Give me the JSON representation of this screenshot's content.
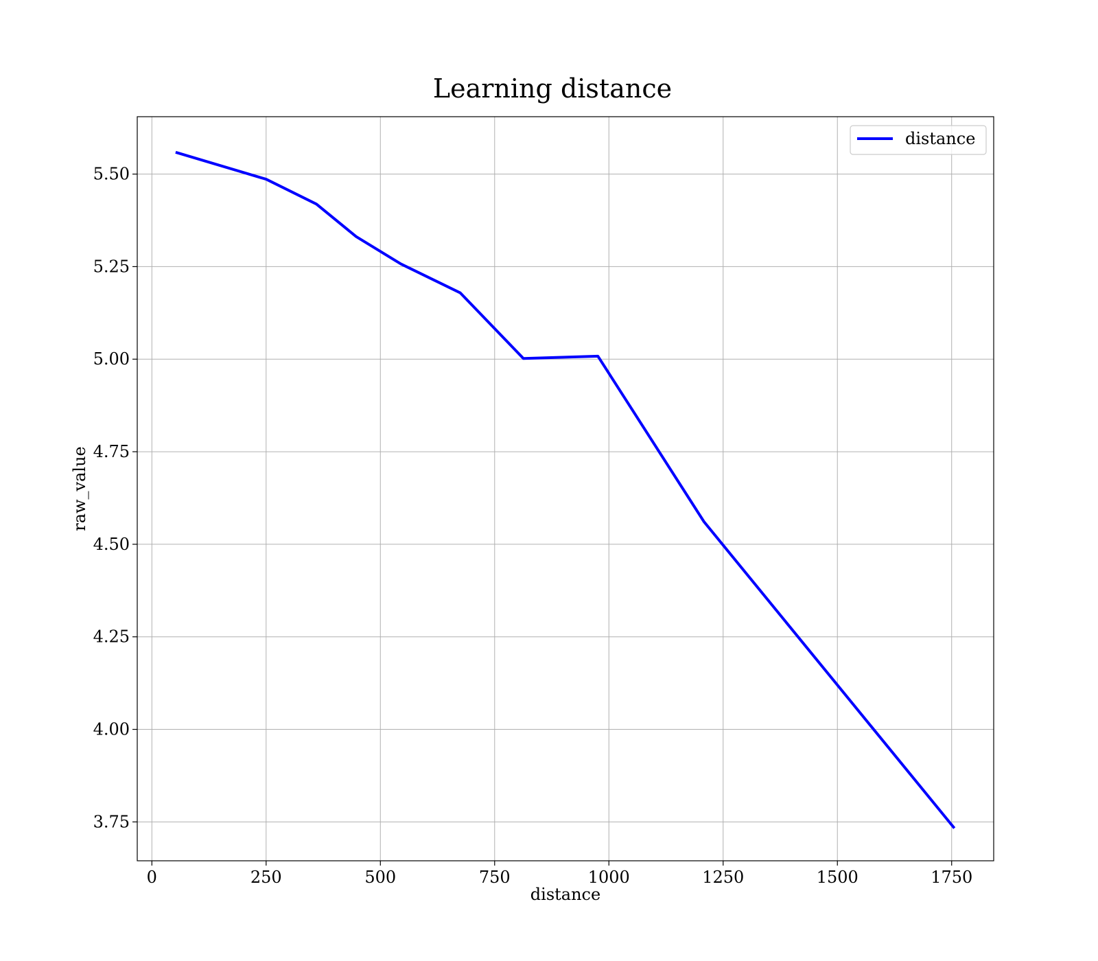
{
  "chart_data": {
    "type": "line",
    "title": "Learning distance",
    "xlabel": "distance",
    "ylabel": "raw_value",
    "xlim": [
      -32,
      1842
    ],
    "ylim": [
      3.645,
      5.655
    ],
    "grid": true,
    "legend_position": "top-right",
    "x_ticks": [
      0,
      250,
      500,
      750,
      1000,
      1250,
      1500,
      1750
    ],
    "x_tick_labels": [
      "0",
      "250",
      "500",
      "750",
      "1000",
      "1250",
      "1500",
      "1750"
    ],
    "y_ticks": [
      3.75,
      4.0,
      4.25,
      4.5,
      4.75,
      5.0,
      5.25,
      5.5
    ],
    "y_tick_labels": [
      "3.75",
      "4.00",
      "4.25",
      "4.50",
      "4.75",
      "5.00",
      "5.25",
      "5.50"
    ],
    "series": [
      {
        "name": "distance",
        "color": "#0000ff",
        "x": [
          52,
          250,
          360,
          447,
          545,
          675,
          813,
          976,
          1208,
          1756
        ],
        "y": [
          5.559,
          5.486,
          5.419,
          5.331,
          5.257,
          5.179,
          5.002,
          5.008,
          4.561,
          3.733
        ]
      }
    ]
  }
}
